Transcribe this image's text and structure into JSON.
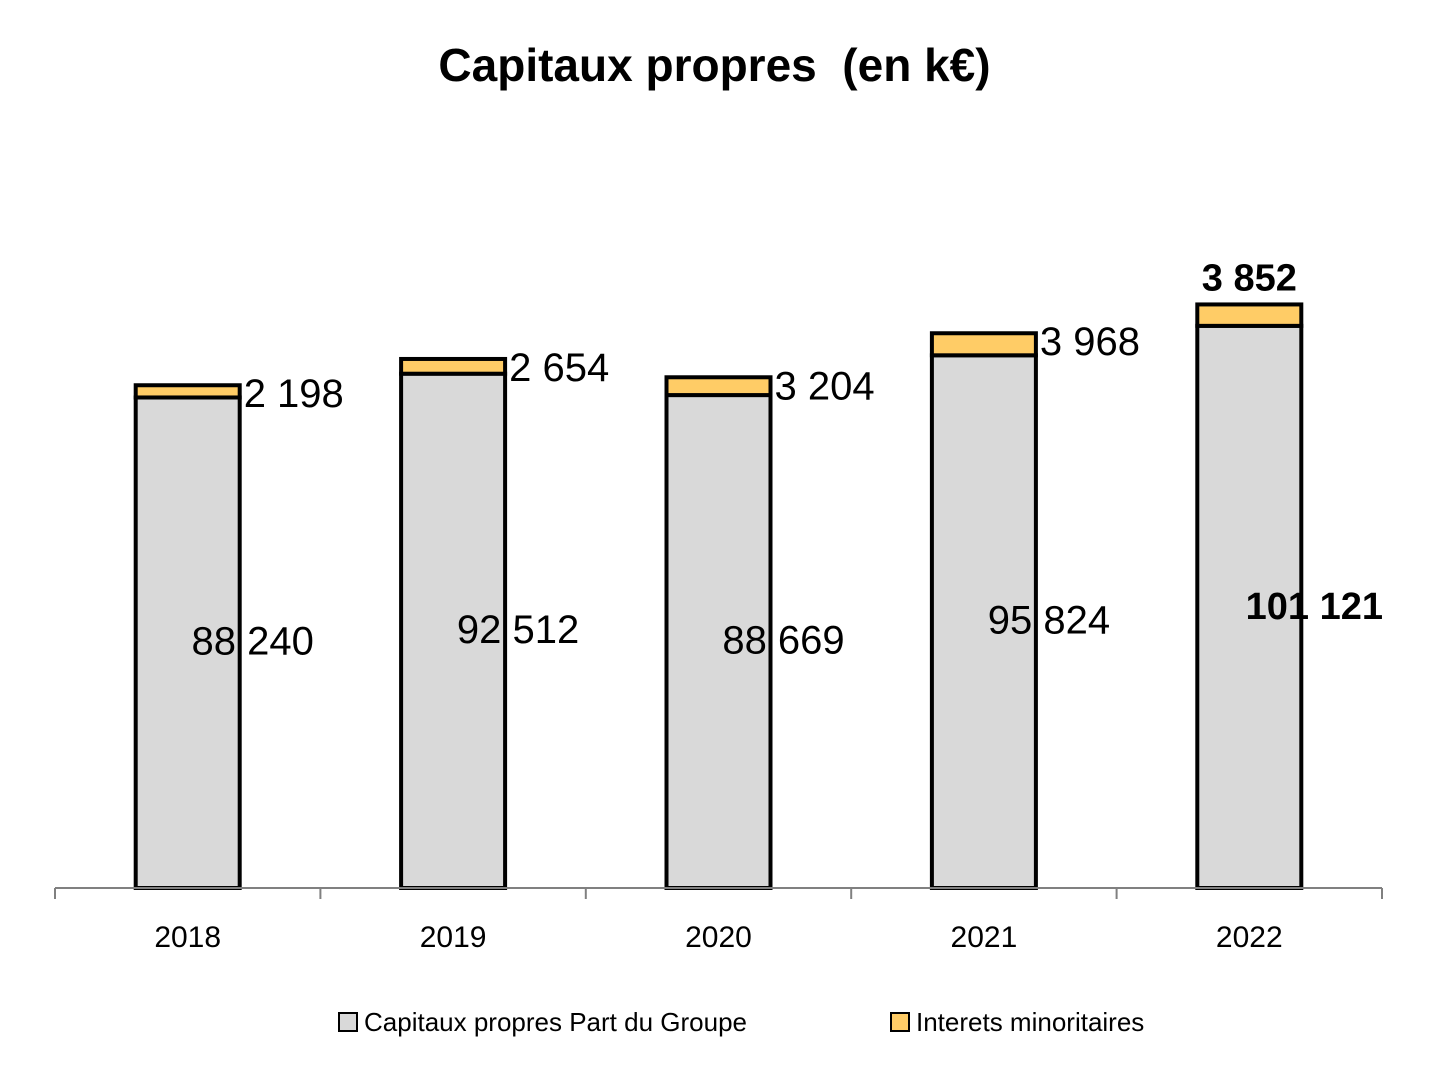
{
  "chart_data": {
    "type": "bar",
    "stacked": true,
    "title": "Capitaux propres  (en k€)",
    "categories": [
      "2018",
      "2019",
      "2020",
      "2021",
      "2022"
    ],
    "series": [
      {
        "name": "Capitaux propres Part du Groupe",
        "values": [
          88240,
          92512,
          88669,
          95824,
          101121
        ],
        "labels": [
          "88 240",
          "92 512",
          "88 669",
          "95 824",
          "101 121"
        ],
        "color": "#d9d9d9"
      },
      {
        "name": "Interets minoritaires",
        "values": [
          2198,
          2654,
          3204,
          3968,
          3852
        ],
        "labels": [
          "2 198",
          "2 654",
          "3 204",
          "3 968",
          "3 852"
        ],
        "color": "#ffcc66"
      }
    ],
    "emphasized_category": "2022",
    "bar_outline_color": "#000000",
    "xlabel": "",
    "ylabel": "",
    "ylim": [
      0,
      105000
    ],
    "grid": false,
    "legend_position": "bottom"
  }
}
